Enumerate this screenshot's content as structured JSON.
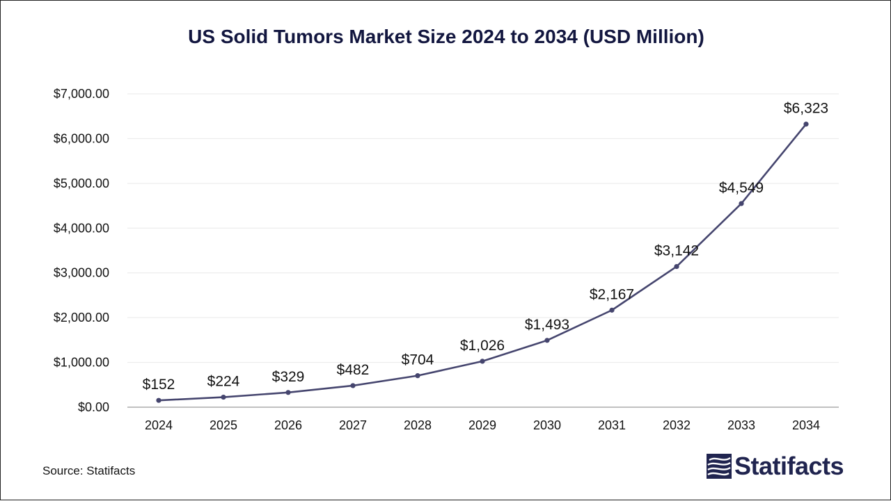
{
  "chart_data": {
    "type": "line",
    "title": "US Solid Tumors Market Size 2024 to 2034 (USD Million)",
    "categories": [
      "2024",
      "2025",
      "2026",
      "2027",
      "2028",
      "2029",
      "2030",
      "2031",
      "2032",
      "2033",
      "2034"
    ],
    "values": [
      152,
      224,
      329,
      482,
      704,
      1026,
      1493,
      2167,
      3142,
      4549,
      6323
    ],
    "data_labels": [
      "$152",
      "$224",
      "$329",
      "$482",
      "$704",
      "$1,026",
      "$1,493",
      "$2,167",
      "$3,142",
      "$4,549",
      "$6,323"
    ],
    "y_ticks": [
      0,
      1000,
      2000,
      3000,
      4000,
      5000,
      6000,
      7000
    ],
    "y_tick_labels": [
      "$0.00",
      "$1,000.00",
      "$2,000.00",
      "$3,000.00",
      "$4,000.00",
      "$5,000.00",
      "$6,000.00",
      "$7,000.00"
    ],
    "ylim": [
      0,
      7000
    ],
    "grid": true,
    "line_color": "#45456e"
  },
  "footer": {
    "source": "Source: Statifacts",
    "brand": "Statifacts",
    "brand_icon": "statifacts-logo-icon",
    "brand_color": "#20244f"
  }
}
